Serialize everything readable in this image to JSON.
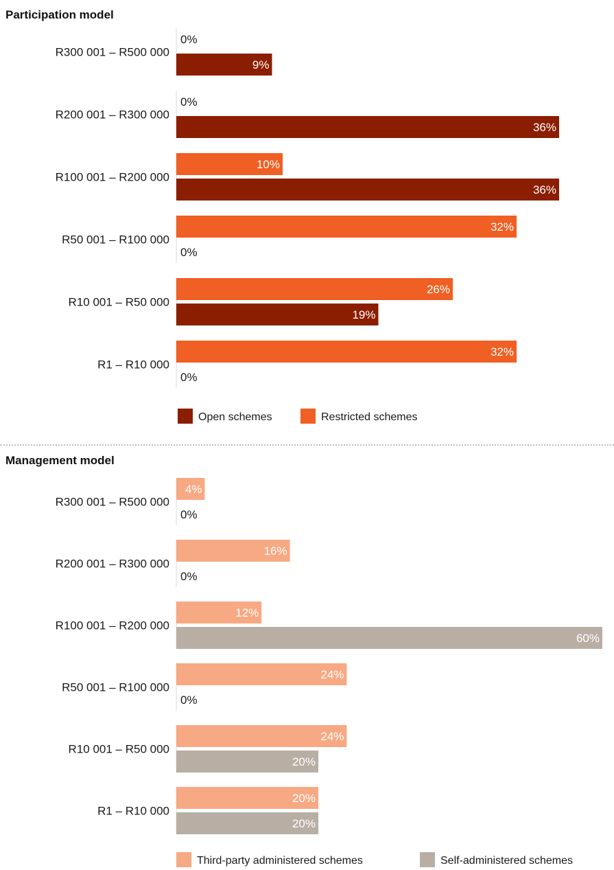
{
  "chart_data": [
    {
      "type": "bar",
      "orientation": "horizontal",
      "title": "Participation model",
      "categories": [
        "R300 001 – R500 000",
        "R200 001 – R300 000",
        "R100 001 – R200 000",
        "R50 001 – R100 000",
        "R10 001 – R50 000",
        "R1 – R10 000"
      ],
      "series": [
        {
          "name": "Restricted schemes",
          "color": "#f05f23",
          "values": [
            0,
            0,
            10,
            32,
            26,
            32
          ]
        },
        {
          "name": "Open schemes",
          "color": "#8b1e00",
          "values": [
            9,
            36,
            36,
            0,
            19,
            0
          ]
        }
      ],
      "value_suffix": "%",
      "xlim": [
        0,
        60
      ],
      "legend_position": "bottom",
      "grid": false
    },
    {
      "type": "bar",
      "orientation": "horizontal",
      "title": "Management model",
      "categories": [
        "R300 001 – R500 000",
        "R200 001 – R300 000",
        "R100 001 – R200 000",
        "R50 001 – R100 000",
        "R10 001 – R50 000",
        "R1 – R10 000"
      ],
      "series": [
        {
          "name": "Third-party administered schemes",
          "color": "#f7a983",
          "values": [
            4,
            16,
            12,
            24,
            24,
            20
          ]
        },
        {
          "name": "Self-administered schemes",
          "color": "#b9aea4",
          "values": [
            0,
            0,
            60,
            0,
            20,
            20
          ]
        }
      ],
      "value_suffix": "%",
      "xlim": [
        0,
        60
      ],
      "legend_position": "bottom",
      "grid": false
    }
  ]
}
